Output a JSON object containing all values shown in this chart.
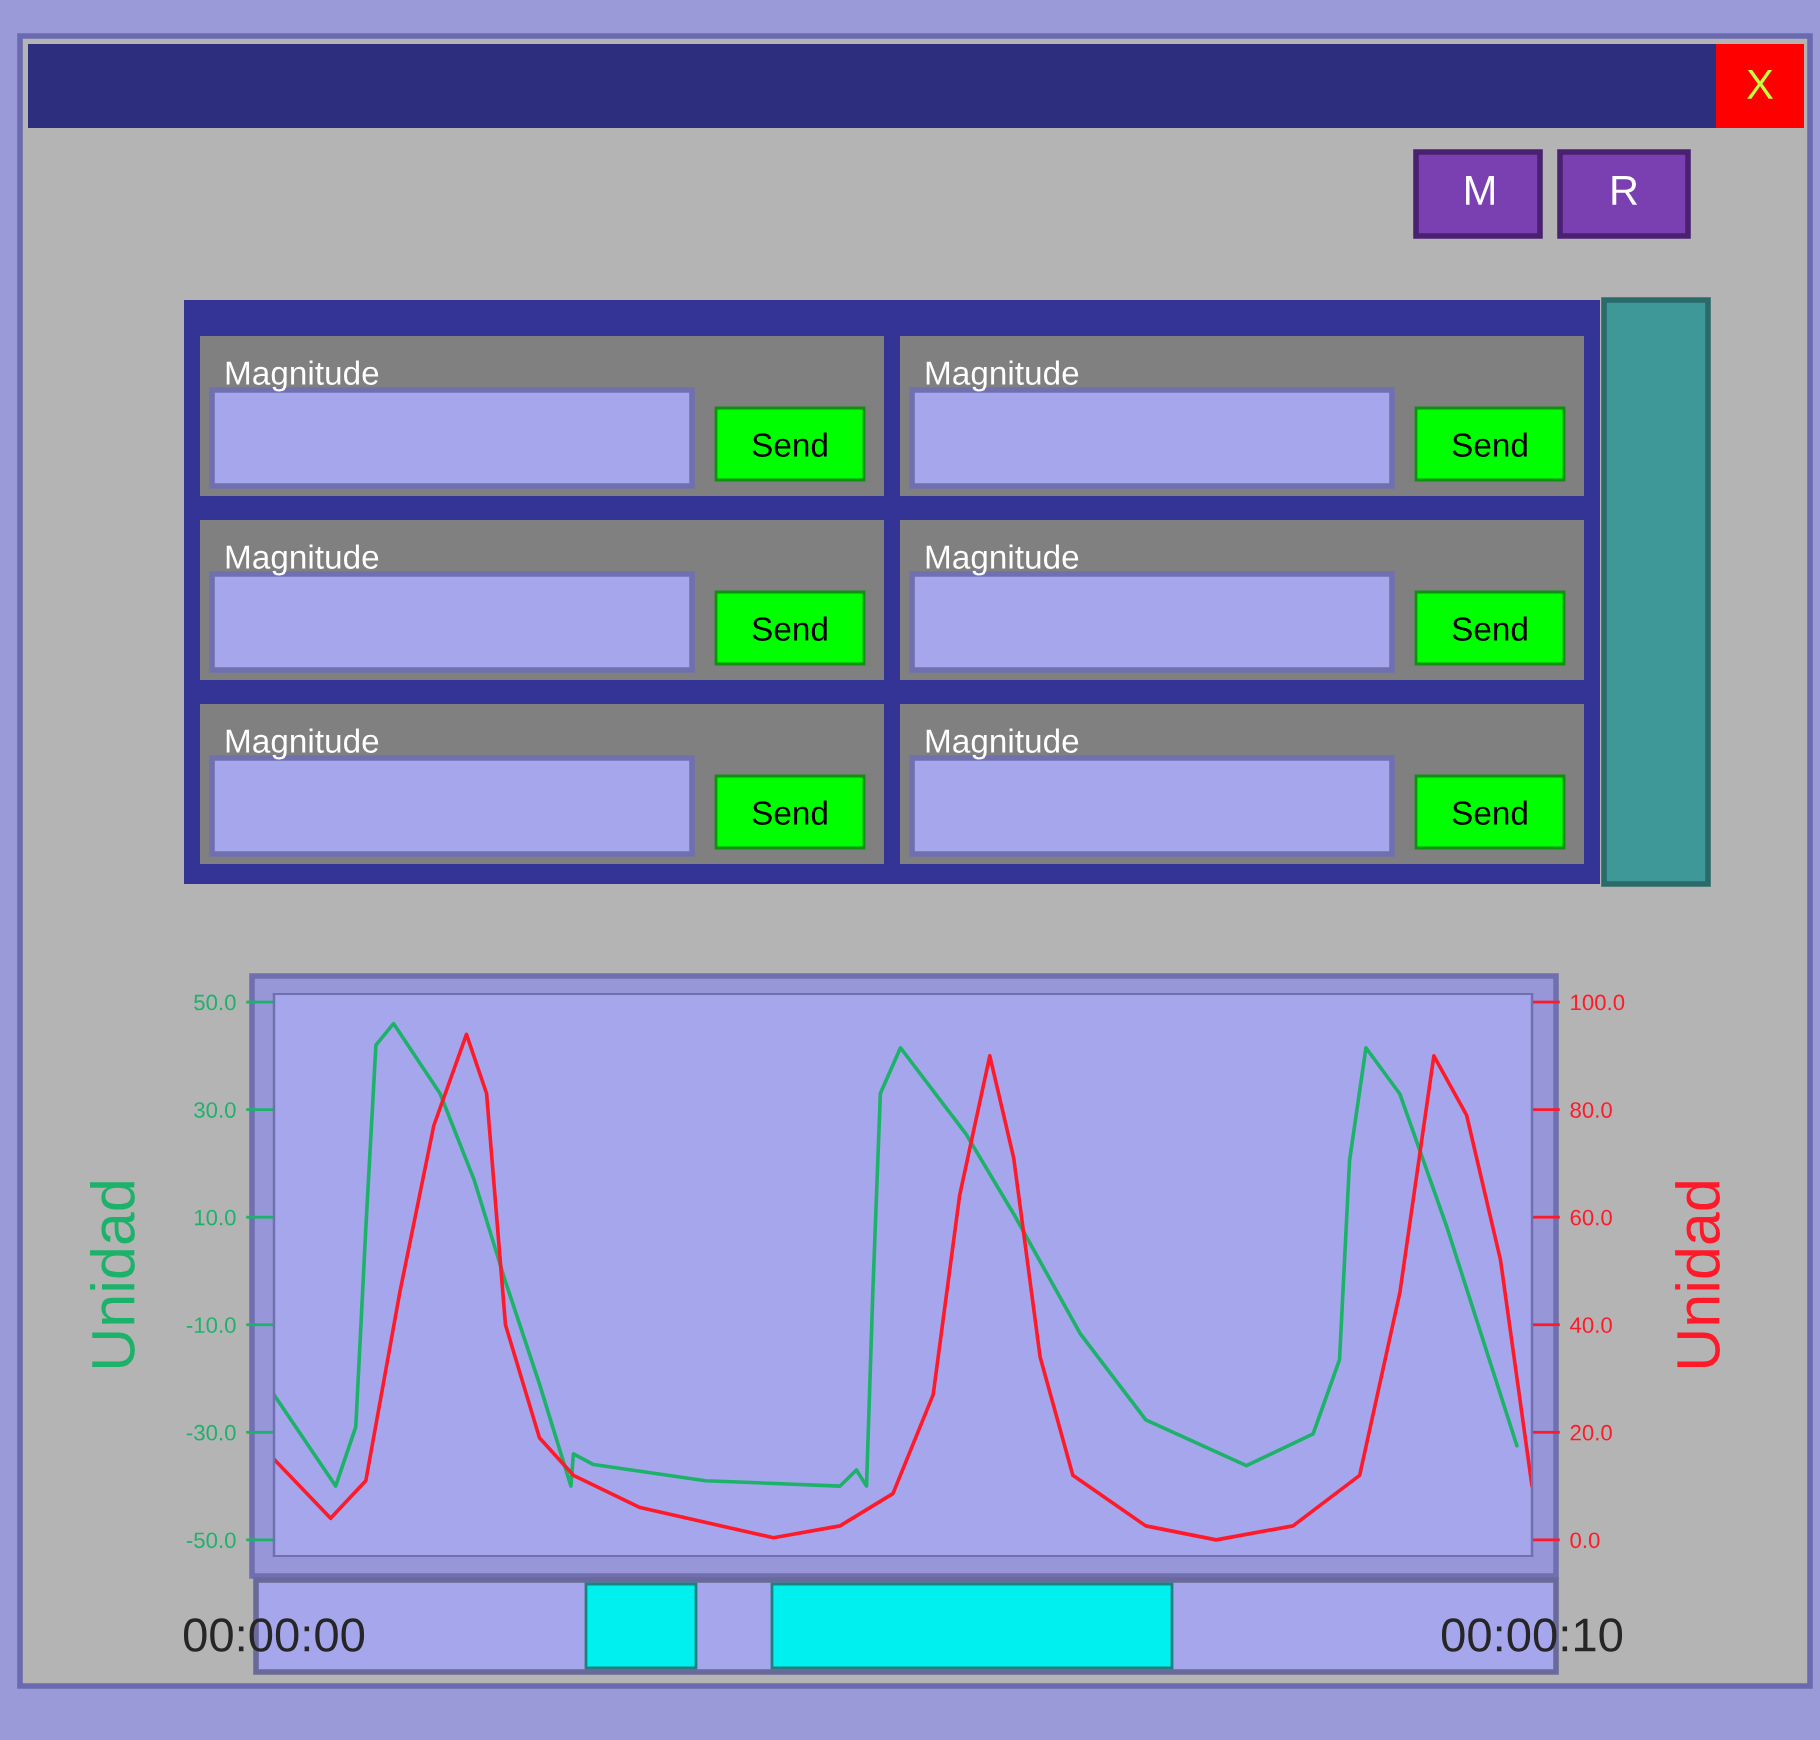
{
  "chart_data": {
    "type": "line",
    "ylabel": "Unidad",
    "y2label": "Unidad",
    "xlim": [
      0,
      10
    ],
    "xticks": [
      {
        "value": 0,
        "label": "00:00:00"
      },
      {
        "value": 10,
        "label": "00:00:10"
      }
    ],
    "ylim": [
      -53,
      51.5
    ],
    "yticks": [
      {
        "value": -50,
        "label": "-50.0"
      },
      {
        "value": -30,
        "label": "-30.0"
      },
      {
        "value": -10,
        "label": "-10.0"
      },
      {
        "value": 10,
        "label": "10.0"
      },
      {
        "value": 30,
        "label": "30.0"
      },
      {
        "value": 50,
        "label": "50.0"
      }
    ],
    "y2lim": [
      -3,
      101.5
    ],
    "y2ticks": [
      {
        "value": 0,
        "label": "0.0"
      },
      {
        "value": 20,
        "label": "20.0"
      },
      {
        "value": 40,
        "label": "40.0"
      },
      {
        "value": 60,
        "label": "60.0"
      },
      {
        "value": 80,
        "label": "80.0"
      },
      {
        "value": 100,
        "label": "100.0"
      }
    ],
    "series": [
      {
        "color": "#1db26a",
        "x": [
          0,
          0.49,
          0.65,
          0.73,
          0.81,
          0.95,
          1.32,
          1.59,
          1.84,
          2.11,
          2.36,
          2.38,
          2.54,
          3.43,
          4.5,
          4.63,
          4.71,
          4.76,
          4.82,
          4.98,
          5.5,
          5.88,
          6.41,
          6.93,
          7.73,
          8.26,
          8.47,
          8.55,
          8.68,
          8.95,
          9.32,
          9.88
        ],
        "values": [
          -23,
          -40,
          -29,
          8,
          42,
          46,
          33,
          17,
          -2,
          -21,
          -40,
          -34,
          -36,
          -39,
          -40,
          -37,
          -40,
          -4,
          33,
          41.5,
          25.5,
          10.6,
          -11.7,
          -27.7,
          -36.2,
          -30.3,
          -16.5,
          20.6,
          41.5,
          32.9,
          8.4,
          -32.5
        ]
      },
      {
        "color": "#ff1a2a",
        "axis": "y2",
        "x": [
          0,
          0.45,
          0.73,
          1.0,
          1.27,
          1.53,
          1.69,
          1.84,
          2.11,
          2.38,
          2.91,
          3.97,
          4.5,
          4.92,
          5.24,
          5.45,
          5.69,
          5.88,
          6.09,
          6.35,
          6.93,
          7.49,
          8.1,
          8.63,
          8.95,
          9.22,
          9.48,
          9.75,
          10
        ],
        "values": [
          15,
          4,
          11,
          46,
          77,
          94,
          83,
          40,
          19,
          12,
          6,
          0.4,
          2.6,
          8.6,
          27,
          64,
          90,
          71,
          34,
          12,
          2.6,
          0,
          2.6,
          12,
          46,
          90,
          79,
          52,
          10
        ]
      }
    ],
    "annotations": [
      "X",
      "M",
      "R",
      "Magnitude",
      "Send",
      "Magnitude",
      "Send",
      "Magnitude",
      "Send",
      "Magnitude",
      "Send",
      "Magnitude",
      "Send",
      "Magnitude",
      "Send"
    ]
  }
}
